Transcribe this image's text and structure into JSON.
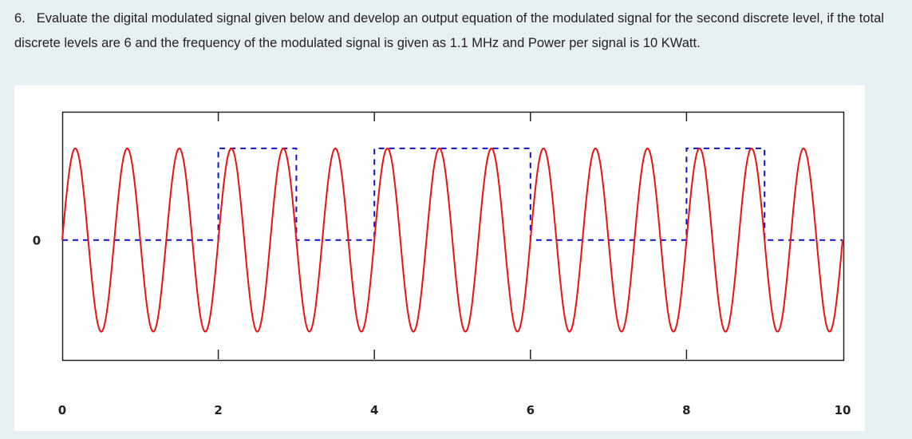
{
  "question": {
    "number": "6.",
    "text": "Evaluate the digital modulated signal given below and develop an output equation of the modulated signal for the second discrete level, if the total discrete levels are 6 and the frequency of the modulated signal is given as 1.1 MHz and Power per signal is 10 KWatt."
  },
  "chart_data": {
    "type": "line",
    "title": "",
    "xlabel": "",
    "ylabel": "",
    "x_ticks": [
      "0",
      "2",
      "4",
      "6",
      "8",
      "10"
    ],
    "y_ticks": [
      "0"
    ],
    "xlim": [
      0,
      10
    ],
    "ylim": [
      -1.3,
      1.4
    ],
    "grid": false,
    "series": [
      {
        "style": "red solid sinusoid (modulated carrier)",
        "color": "#ee1111",
        "cycles_per_unit": 1.5,
        "amplitude": 1.0
      },
      {
        "style": "blue dashed binary data signal",
        "color": "#1111cc",
        "x": [
          0,
          2,
          2,
          3,
          3,
          4,
          4,
          6,
          6,
          8,
          8,
          9,
          9,
          10
        ],
        "y": [
          0,
          0,
          1,
          1,
          0,
          0,
          1,
          1,
          0,
          0,
          1,
          1,
          0,
          0
        ]
      }
    ]
  }
}
